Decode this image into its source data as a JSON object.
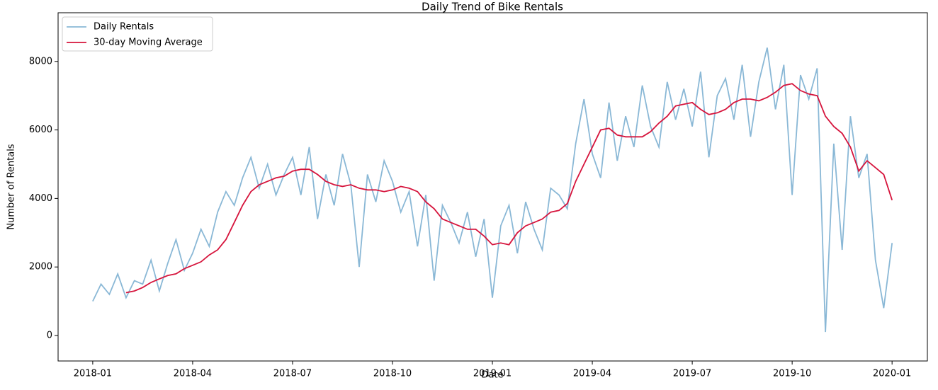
{
  "chart_data": {
    "type": "line",
    "title": "Daily Trend of Bike Rentals",
    "x_label": "Date",
    "y_label": "Number of Rentals",
    "x": [
      0,
      0.25,
      0.5,
      0.75,
      1,
      1.25,
      1.5,
      1.75,
      2,
      2.25,
      2.5,
      2.75,
      3,
      3.25,
      3.5,
      3.75,
      4,
      4.25,
      4.5,
      4.75,
      5,
      5.25,
      5.5,
      5.75,
      6,
      6.25,
      6.5,
      6.75,
      7,
      7.25,
      7.5,
      7.75,
      8,
      8.25,
      8.5,
      8.75,
      9,
      9.25,
      9.5,
      9.75,
      10,
      10.25,
      10.5,
      10.75,
      11,
      11.25,
      11.5,
      11.75,
      12,
      12.25,
      12.5,
      12.75,
      13,
      13.25,
      13.5,
      13.75,
      14,
      14.25,
      14.5,
      14.75,
      15,
      15.25,
      15.5,
      15.75,
      16,
      16.25,
      16.5,
      16.75,
      17,
      17.25,
      17.5,
      17.75,
      18,
      18.25,
      18.5,
      18.75,
      19,
      19.25,
      19.5,
      19.75,
      20,
      20.25,
      20.5,
      20.75,
      21,
      21.25,
      21.5,
      21.75,
      22,
      22.25,
      22.5,
      22.75,
      23,
      23.25,
      23.5,
      23.75,
      24
    ],
    "series": [
      {
        "name": "Daily Rentals",
        "color": "#8ab8d6",
        "width": 1.8,
        "values": [
          1000,
          1500,
          1200,
          1800,
          1100,
          1600,
          1500,
          2200,
          1300,
          2100,
          2800,
          1900,
          2400,
          3100,
          2600,
          3600,
          4200,
          3800,
          4600,
          5200,
          4300,
          5000,
          4100,
          4700,
          5200,
          4100,
          5500,
          3400,
          4700,
          3800,
          5300,
          4400,
          2000,
          4700,
          3900,
          5100,
          4500,
          3600,
          4200,
          2600,
          4100,
          1600,
          3800,
          3300,
          2700,
          3600,
          2300,
          3400,
          1100,
          3200,
          3800,
          2400,
          3900,
          3100,
          2500,
          4300,
          4100,
          3700,
          5600,
          6900,
          5300,
          4600,
          6800,
          5100,
          6400,
          5500,
          7300,
          6100,
          5500,
          7400,
          6300,
          7200,
          6100,
          7700,
          5200,
          7000,
          7500,
          6300,
          7900,
          5800,
          7400,
          8400,
          6600,
          7900,
          4100,
          7600,
          6900,
          7800,
          100,
          5600,
          2500,
          6400,
          4600,
          5300,
          2200,
          800,
          2700
        ]
      },
      {
        "name": "30-day Moving Average",
        "color": "#d6143c",
        "width": 1.8,
        "values": [
          null,
          null,
          null,
          null,
          1250,
          1300,
          1400,
          1550,
          1650,
          1750,
          1800,
          1950,
          2050,
          2150,
          2350,
          2500,
          2800,
          3300,
          3800,
          4200,
          4400,
          4500,
          4600,
          4650,
          4800,
          4850,
          4850,
          4700,
          4500,
          4400,
          4350,
          4400,
          4300,
          4250,
          4250,
          4200,
          4250,
          4350,
          4300,
          4200,
          3900,
          3700,
          3400,
          3300,
          3200,
          3100,
          3100,
          2900,
          2650,
          2700,
          2650,
          3000,
          3200,
          3300,
          3400,
          3600,
          3650,
          3850,
          4500,
          5000,
          5500,
          6000,
          6050,
          5850,
          5800,
          5800,
          5800,
          5950,
          6200,
          6400,
          6700,
          6750,
          6800,
          6600,
          6450,
          6500,
          6600,
          6800,
          6900,
          6900,
          6850,
          6950,
          7100,
          7300,
          7350,
          7150,
          7050,
          7000,
          6400,
          6100,
          5900,
          5500,
          4800,
          5100,
          4900,
          4700,
          3950
        ]
      }
    ],
    "xlim": [
      -1.04,
      25.06
    ],
    "xticks": [
      {
        "value": 0,
        "label": "2018-01"
      },
      {
        "value": 3,
        "label": "2018-04"
      },
      {
        "value": 6,
        "label": "2018-07"
      },
      {
        "value": 9,
        "label": "2018-10"
      },
      {
        "value": 12,
        "label": "2019-01"
      },
      {
        "value": 15,
        "label": "2019-04"
      },
      {
        "value": 18,
        "label": "2019-07"
      },
      {
        "value": 21,
        "label": "2019-10"
      },
      {
        "value": 24,
        "label": "2020-01"
      }
    ],
    "ylim": [
      -744,
      9421
    ],
    "yticks": [
      0,
      2000,
      4000,
      6000,
      8000
    ],
    "legend": "upper left"
  }
}
